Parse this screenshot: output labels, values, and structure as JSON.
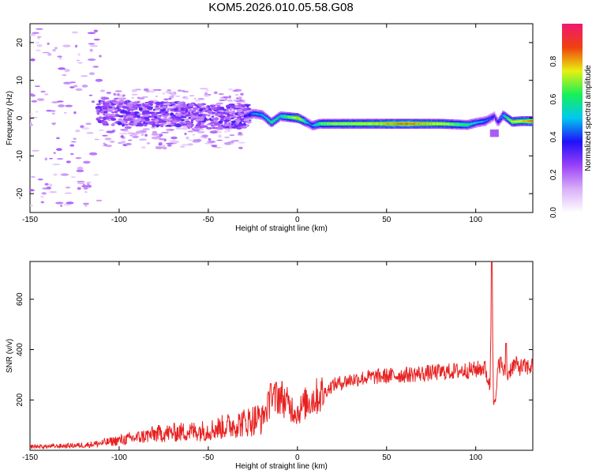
{
  "figure_title": "KOM5.2026.010.05.58.G08",
  "chart_data": [
    {
      "type": "heatmap",
      "title": "",
      "xlabel": "Height of straight line (km)",
      "ylabel": "Frequency (Hz)",
      "xlim": [
        -150,
        132
      ],
      "ylim": [
        -25,
        25
      ],
      "x_ticks": [
        -150,
        -100,
        -50,
        0,
        50,
        100
      ],
      "y_ticks": [
        -20,
        -10,
        0,
        10,
        20
      ],
      "colorbar": {
        "label": "Normalized spectral amplitude",
        "range": [
          0.0,
          1.0
        ],
        "ticks": [
          "0.0",
          "0.2",
          "0.4",
          "0.6",
          "0.8"
        ],
        "tick_values": [
          0.0,
          0.2,
          0.4,
          0.6,
          0.8
        ],
        "colors": [
          "#ffffff",
          "#d8b0f8",
          "#9a40f8",
          "#2010f8",
          "#00c8f0",
          "#18f058",
          "#e8f010",
          "#f04010",
          "#f01870"
        ]
      },
      "ridge": {
        "x": [
          -110,
          -90,
          -70,
          -50,
          -40,
          -30,
          -25,
          -20,
          -15,
          -10,
          0,
          5,
          8,
          12,
          20,
          40,
          60,
          80,
          95,
          100,
          105,
          110,
          112,
          115,
          120,
          125,
          132
        ],
        "frequency": [
          1.5,
          1.2,
          1.0,
          0.5,
          0.3,
          0.5,
          1.2,
          0.8,
          -1.2,
          0.5,
          0.0,
          -1.2,
          -2.0,
          -1.5,
          -1.5,
          -1.5,
          -1.5,
          -1.5,
          -1.8,
          -1.2,
          -0.8,
          0.5,
          -1.2,
          0.8,
          -1.0,
          -0.8,
          -0.8
        ],
        "amplitude": [
          0.25,
          0.3,
          0.25,
          0.3,
          0.3,
          0.35,
          0.45,
          0.5,
          0.6,
          0.55,
          0.8,
          0.5,
          0.45,
          0.65,
          0.7,
          0.75,
          0.85,
          0.75,
          0.6,
          0.5,
          0.45,
          0.35,
          0.35,
          0.5,
          0.75,
          0.75,
          0.85
        ]
      }
    },
    {
      "type": "line",
      "title": "",
      "xlabel": "Height of straight line (km)",
      "ylabel": "SNR (v/v)",
      "xlim": [
        -150,
        132
      ],
      "ylim": [
        0,
        750
      ],
      "x_ticks": [
        -150,
        -100,
        -50,
        0,
        50,
        100
      ],
      "y_ticks": [
        200,
        400,
        600
      ],
      "color": "#e82020",
      "series": [
        {
          "x": [
            -150,
            -140,
            -130,
            -120,
            -110,
            -100,
            -90,
            -80,
            -70,
            -60,
            -50,
            -40,
            -30,
            -20,
            -15,
            -10,
            -5,
            0,
            5,
            10,
            15,
            20,
            30,
            40,
            50,
            60,
            70,
            80,
            90,
            100,
            105,
            108,
            109,
            110,
            111,
            112,
            113,
            115,
            118,
            120,
            122,
            125,
            130,
            132
          ],
          "y": [
            15,
            15,
            18,
            20,
            28,
            40,
            50,
            65,
            70,
            75,
            80,
            95,
            110,
            130,
            190,
            220,
            180,
            150,
            190,
            210,
            230,
            260,
            280,
            290,
            295,
            300,
            305,
            310,
            315,
            320,
            330,
            250,
            750,
            200,
            180,
            280,
            350,
            320,
            300,
            330,
            340,
            330,
            330,
            335
          ]
        }
      ],
      "spikes": [
        {
          "x": 109,
          "y": 750
        },
        {
          "x": -12,
          "y": 270
        },
        {
          "x": -15,
          "y": 265
        },
        {
          "x": 117,
          "y": 425
        },
        {
          "x": 114,
          "y": 370
        }
      ]
    }
  ]
}
